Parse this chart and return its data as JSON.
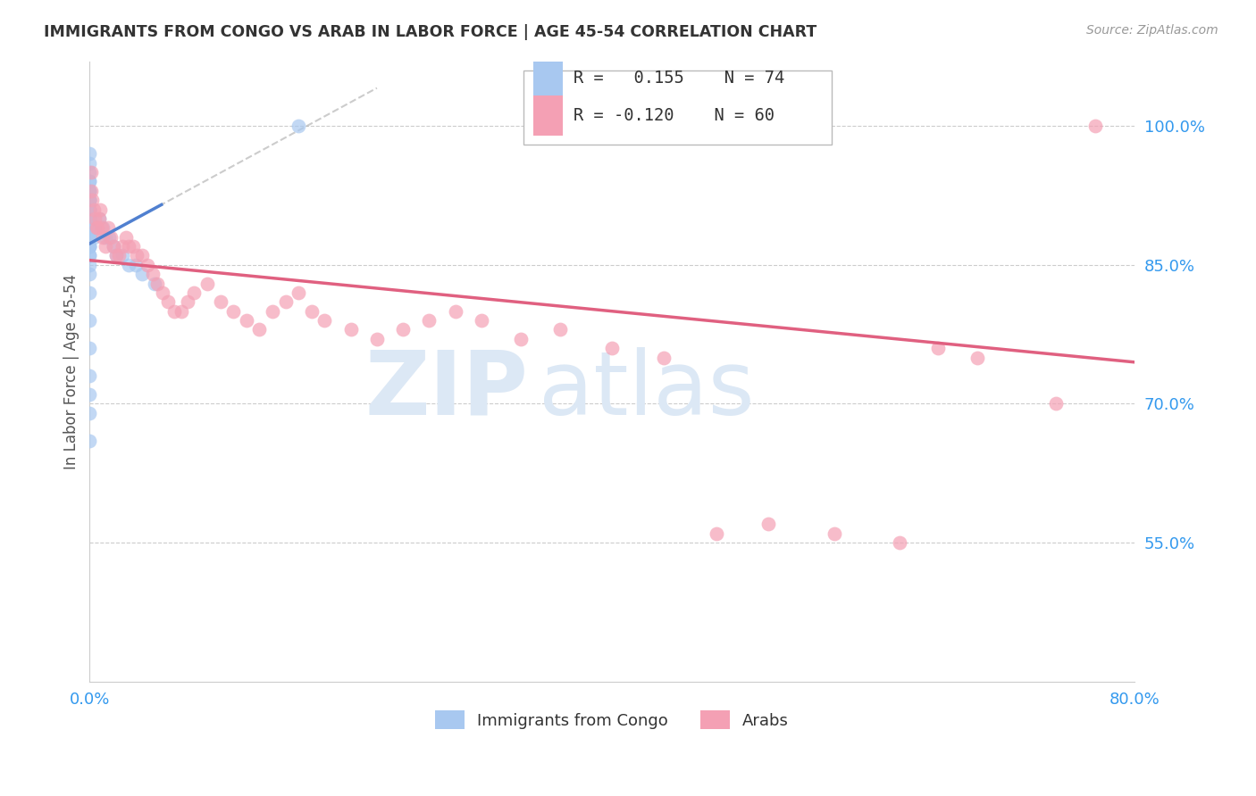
{
  "title": "IMMIGRANTS FROM CONGO VS ARAB IN LABOR FORCE | AGE 45-54 CORRELATION CHART",
  "source": "Source: ZipAtlas.com",
  "ylabel": "In Labor Force | Age 45-54",
  "xlim": [
    0.0,
    0.8
  ],
  "ylim": [
    0.4,
    1.07
  ],
  "ytick_labels": [
    "55.0%",
    "70.0%",
    "85.0%",
    "100.0%"
  ],
  "ytick_values": [
    0.55,
    0.7,
    0.85,
    1.0
  ],
  "xtick_labels": [
    "0.0%",
    "",
    "",
    "",
    "",
    "80.0%"
  ],
  "xtick_values": [
    0.0,
    0.16,
    0.32,
    0.48,
    0.64,
    0.8
  ],
  "legend_r_congo": " 0.155",
  "legend_n_congo": "74",
  "legend_r_arab": "-0.120",
  "legend_n_arab": "60",
  "congo_color": "#a8c8f0",
  "arab_color": "#f4a0b4",
  "trend_congo_color": "#5080d0",
  "trend_arab_color": "#e06080",
  "dashed_color": "#b0c8e8",
  "background_color": "#ffffff",
  "grid_color": "#cccccc",
  "watermark_zip": "ZIP",
  "watermark_atlas": "atlas",
  "watermark_color": "#dce8f5",
  "congo_x": [
    0.0,
    0.0,
    0.0,
    0.0,
    0.0,
    0.0,
    0.0,
    0.0,
    0.0,
    0.0,
    0.0,
    0.0,
    0.0,
    0.0,
    0.0,
    0.0,
    0.0,
    0.0,
    0.0,
    0.0,
    0.0,
    0.0,
    0.0,
    0.0,
    0.0,
    0.0,
    0.0,
    0.0,
    0.0,
    0.0,
    0.0,
    0.0,
    0.0,
    0.0,
    0.0,
    0.0,
    0.0,
    0.0,
    0.0,
    0.0,
    0.0,
    0.0,
    0.0,
    0.0,
    0.0,
    0.0,
    0.0,
    0.0,
    0.0,
    0.0,
    0.0,
    0.0,
    0.0,
    0.0,
    0.0,
    0.0,
    0.0,
    0.0,
    0.0,
    0.0,
    0.003,
    0.005,
    0.007,
    0.01,
    0.012,
    0.015,
    0.018,
    0.02,
    0.025,
    0.03,
    0.035,
    0.04,
    0.05,
    0.16
  ],
  "congo_y": [
    0.86,
    0.87,
    0.87,
    0.87,
    0.88,
    0.88,
    0.88,
    0.88,
    0.88,
    0.88,
    0.88,
    0.88,
    0.88,
    0.89,
    0.89,
    0.89,
    0.89,
    0.89,
    0.89,
    0.89,
    0.9,
    0.9,
    0.9,
    0.9,
    0.9,
    0.9,
    0.9,
    0.9,
    0.9,
    0.9,
    0.9,
    0.91,
    0.91,
    0.91,
    0.91,
    0.91,
    0.91,
    0.91,
    0.92,
    0.92,
    0.92,
    0.92,
    0.93,
    0.93,
    0.93,
    0.94,
    0.94,
    0.95,
    0.96,
    0.97,
    0.86,
    0.85,
    0.84,
    0.82,
    0.79,
    0.76,
    0.73,
    0.71,
    0.69,
    0.66,
    0.88,
    0.89,
    0.9,
    0.89,
    0.88,
    0.88,
    0.87,
    0.86,
    0.86,
    0.85,
    0.85,
    0.84,
    0.83,
    1.0
  ],
  "arab_x": [
    0.001,
    0.001,
    0.002,
    0.003,
    0.004,
    0.005,
    0.006,
    0.007,
    0.008,
    0.009,
    0.01,
    0.012,
    0.014,
    0.016,
    0.018,
    0.02,
    0.022,
    0.025,
    0.028,
    0.03,
    0.033,
    0.036,
    0.04,
    0.044,
    0.048,
    0.052,
    0.056,
    0.06,
    0.065,
    0.07,
    0.075,
    0.08,
    0.09,
    0.1,
    0.11,
    0.12,
    0.13,
    0.14,
    0.15,
    0.16,
    0.17,
    0.18,
    0.2,
    0.22,
    0.24,
    0.26,
    0.28,
    0.3,
    0.33,
    0.36,
    0.4,
    0.44,
    0.48,
    0.52,
    0.57,
    0.62,
    0.65,
    0.68,
    0.74,
    0.77
  ],
  "arab_y": [
    0.95,
    0.93,
    0.92,
    0.91,
    0.9,
    0.89,
    0.89,
    0.9,
    0.91,
    0.89,
    0.88,
    0.87,
    0.89,
    0.88,
    0.87,
    0.86,
    0.86,
    0.87,
    0.88,
    0.87,
    0.87,
    0.86,
    0.86,
    0.85,
    0.84,
    0.83,
    0.82,
    0.81,
    0.8,
    0.8,
    0.81,
    0.82,
    0.83,
    0.81,
    0.8,
    0.79,
    0.78,
    0.8,
    0.81,
    0.82,
    0.8,
    0.79,
    0.78,
    0.77,
    0.78,
    0.79,
    0.8,
    0.79,
    0.77,
    0.78,
    0.76,
    0.75,
    0.56,
    0.57,
    0.56,
    0.55,
    0.76,
    0.75,
    0.7,
    1.0
  ]
}
